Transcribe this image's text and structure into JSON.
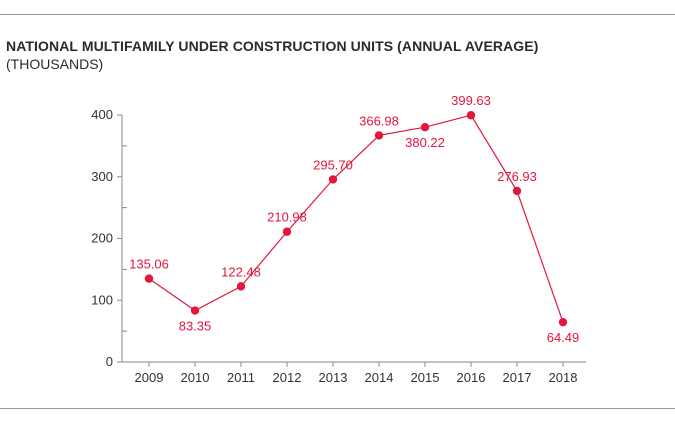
{
  "colors": {
    "accent": "#e3173e",
    "axis": "#888888",
    "text": "#333333"
  },
  "chart_data": {
    "type": "line",
    "title": "NATIONAL MULTIFAMILY UNDER CONSTRUCTION UNITS (ANNUAL AVERAGE)",
    "subtitle": "(THOUSANDS)",
    "xlabel": "",
    "ylabel": "",
    "ylim": [
      0,
      400
    ],
    "yticks": [
      "0",
      "100",
      "200",
      "300",
      "400"
    ],
    "grid": false,
    "legend": "none",
    "categories": [
      "2009",
      "2010",
      "2011",
      "2012",
      "2013",
      "2014",
      "2015",
      "2016",
      "2017",
      "2018"
    ],
    "series": [
      {
        "name": "Under construction units",
        "values": [
          135.06,
          83.35,
          122.48,
          210.98,
          295.7,
          366.98,
          380.22,
          399.63,
          276.93,
          64.49
        ],
        "labels": [
          "135.06",
          "83.35",
          "122.48",
          "210.98",
          "295.70",
          "366.98",
          "380.22",
          "399.63",
          "276.93",
          "64.49"
        ]
      }
    ]
  }
}
